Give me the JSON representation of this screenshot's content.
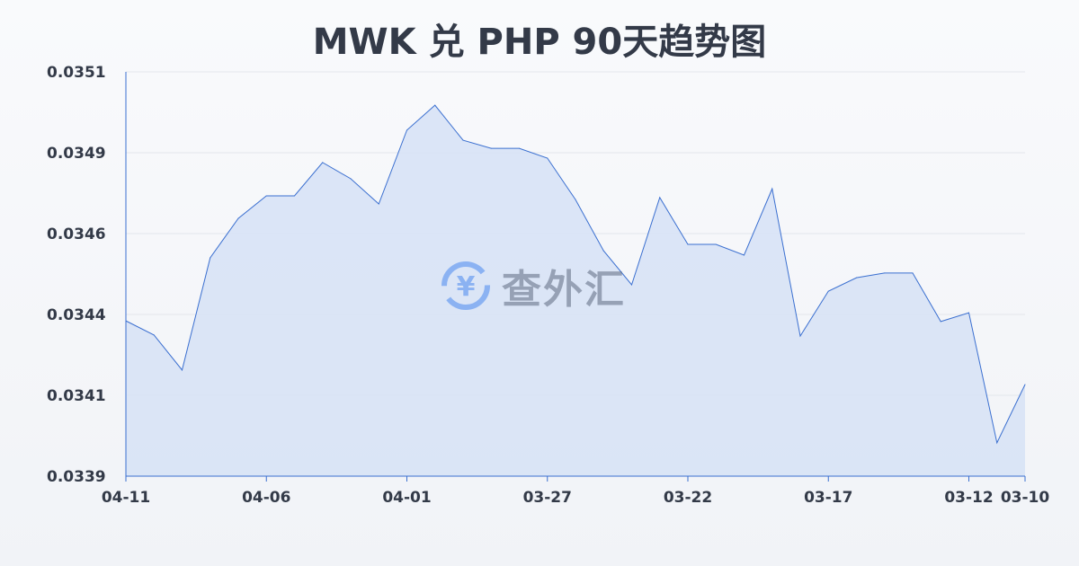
{
  "chart_data": {
    "type": "area",
    "title": "MWK 兑 PHP 90天趋势图",
    "xlabel": "",
    "ylabel": "",
    "ylim": [
      0.0339,
      0.0351
    ],
    "y_ticks": [
      "0.0351",
      "0.0349",
      "0.0346",
      "0.0344",
      "0.0341",
      "0.0339"
    ],
    "x_ticks": [
      "04-11",
      "04-06",
      "04-01",
      "03-27",
      "03-22",
      "03-17",
      "03-12",
      "03-10"
    ],
    "grid": true,
    "x": [
      "04-11",
      "04-10",
      "04-09",
      "04-08",
      "04-07",
      "04-06",
      "04-05",
      "04-04",
      "04-03",
      "04-02",
      "04-01",
      "03-31",
      "03-30",
      "03-29",
      "03-28",
      "03-27",
      "03-26",
      "03-25",
      "03-24",
      "03-23",
      "03-22",
      "03-21",
      "03-20",
      "03-19",
      "03-18",
      "03-17",
      "03-16",
      "03-15",
      "03-14",
      "03-13",
      "03-12",
      "03-11",
      "03-10"
    ],
    "values": [
      0.034361,
      0.034319,
      0.034215,
      0.034548,
      0.034665,
      0.034732,
      0.034732,
      0.034831,
      0.034783,
      0.034708,
      0.034927,
      0.035001,
      0.034897,
      0.034873,
      0.034873,
      0.034844,
      0.034721,
      0.034569,
      0.034468,
      0.034727,
      0.034588,
      0.034588,
      0.034556,
      0.034753,
      0.034316,
      0.034449,
      0.034489,
      0.034503,
      0.034503,
      0.034359,
      0.034385,
      0.033999,
      0.034172
    ],
    "colors": {
      "line": "#3a6fd0",
      "fill": "#d6e2f6"
    }
  },
  "watermark": "查外汇"
}
